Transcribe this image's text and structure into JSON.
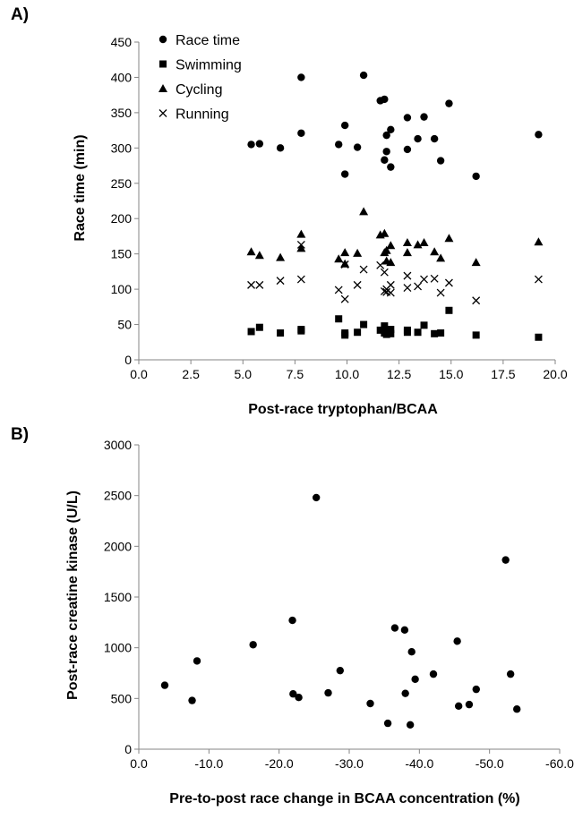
{
  "panels": [
    {
      "label": "A)"
    },
    {
      "label": "B)"
    }
  ],
  "chart_data": [
    {
      "type": "scatter",
      "panel": "A)",
      "title": "",
      "xlabel": "Post-race tryptophan/BCAA",
      "ylabel": "Race time (min)",
      "xlim": [
        0,
        20
      ],
      "ylim": [
        0,
        450
      ],
      "xticks": [
        "0.0",
        "2.5",
        "5.0",
        "7.5",
        "10.0",
        "12.5",
        "15.0",
        "17.5",
        "20.0"
      ],
      "yticks": [
        "0",
        "50",
        "100",
        "150",
        "200",
        "250",
        "300",
        "350",
        "400",
        "450"
      ],
      "grid": false,
      "legend_position": "top-left",
      "series": [
        {
          "name": "Race time",
          "marker": "circle",
          "x": [
            5.4,
            5.8,
            6.8,
            7.8,
            7.8,
            9.6,
            9.9,
            9.9,
            10.5,
            10.8,
            11.6,
            11.8,
            11.8,
            11.9,
            11.9,
            12.1,
            12.1,
            12.9,
            12.9,
            13.4,
            13.7,
            14.2,
            14.5,
            14.9,
            16.2,
            19.2
          ],
          "y": [
            305,
            306,
            300,
            321,
            400,
            305,
            263,
            332,
            301,
            403,
            367,
            369,
            283,
            295,
            318,
            273,
            326,
            343,
            298,
            313,
            344,
            313,
            282,
            363,
            260,
            319
          ]
        },
        {
          "name": "Swimming",
          "marker": "square",
          "x": [
            5.4,
            5.8,
            6.8,
            7.8,
            7.8,
            9.6,
            9.9,
            9.9,
            10.5,
            10.8,
            11.6,
            11.8,
            11.8,
            11.9,
            11.9,
            12.1,
            12.1,
            12.9,
            12.9,
            13.4,
            13.7,
            14.2,
            14.5,
            14.9,
            16.2,
            19.2
          ],
          "y": [
            40,
            46,
            38,
            43,
            41,
            58,
            35,
            38,
            39,
            50,
            42,
            48,
            38,
            36,
            41,
            43,
            37,
            42,
            39,
            39,
            49,
            37,
            38,
            70,
            35,
            32
          ]
        },
        {
          "name": "Cycling",
          "marker": "triangle",
          "x": [
            5.4,
            5.8,
            6.8,
            7.8,
            7.8,
            9.6,
            9.9,
            9.9,
            10.5,
            10.8,
            11.6,
            11.8,
            11.8,
            11.9,
            11.9,
            12.1,
            12.1,
            12.9,
            12.9,
            13.4,
            13.7,
            14.2,
            14.5,
            14.9,
            16.2,
            19.2
          ],
          "y": [
            153,
            148,
            145,
            178,
            158,
            143,
            136,
            152,
            151,
            210,
            177,
            179,
            152,
            155,
            140,
            138,
            162,
            166,
            152,
            163,
            166,
            153,
            144,
            172,
            138,
            167
          ]
        },
        {
          "name": "Running",
          "marker": "cross",
          "x": [
            5.4,
            5.8,
            6.8,
            7.8,
            7.8,
            9.6,
            9.9,
            9.9,
            10.5,
            10.8,
            11.6,
            11.8,
            11.8,
            11.9,
            11.9,
            12.1,
            12.1,
            12.9,
            12.9,
            13.4,
            13.7,
            14.2,
            14.5,
            14.9,
            16.2,
            19.2
          ],
          "y": [
            106,
            106,
            112,
            114,
            163,
            99,
            86,
            135,
            106,
            128,
            134,
            124,
            97,
            100,
            96,
            106,
            95,
            119,
            102,
            104,
            114,
            115,
            95,
            109,
            84,
            114
          ]
        }
      ]
    },
    {
      "type": "scatter",
      "panel": "B)",
      "title": "",
      "xlabel": "Pre-to-post race change in BCAA concentration (%)",
      "ylabel": "Post-race creatine kinase (U/L)",
      "xlim": [
        0,
        -60
      ],
      "ylim": [
        0,
        3000
      ],
      "xticks": [
        "0.0",
        "-10.0",
        "-20.0",
        "-30.0",
        "-40.0",
        "-50.0",
        "-60.0"
      ],
      "yticks": [
        "0",
        "500",
        "1000",
        "1500",
        "2000",
        "2500",
        "3000"
      ],
      "grid": false,
      "series": [
        {
          "marker": "circle",
          "x": [
            -3.7,
            -7.6,
            -8.3,
            -16.3,
            -21.9,
            -22.0,
            -22.8,
            -25.3,
            -27.0,
            -28.7,
            -33.0,
            -35.5,
            -36.5,
            -37.9,
            -38.0,
            -38.7,
            -38.9,
            -39.4,
            -42.0,
            -45.4,
            -45.6,
            -47.1,
            -48.1,
            -52.3,
            -53.0,
            -53.9
          ],
          "y": [
            630,
            480,
            870,
            1030,
            1270,
            545,
            510,
            2480,
            555,
            775,
            450,
            255,
            1195,
            1175,
            550,
            240,
            960,
            690,
            740,
            1065,
            425,
            440,
            590,
            1865,
            740,
            395
          ]
        }
      ]
    }
  ]
}
